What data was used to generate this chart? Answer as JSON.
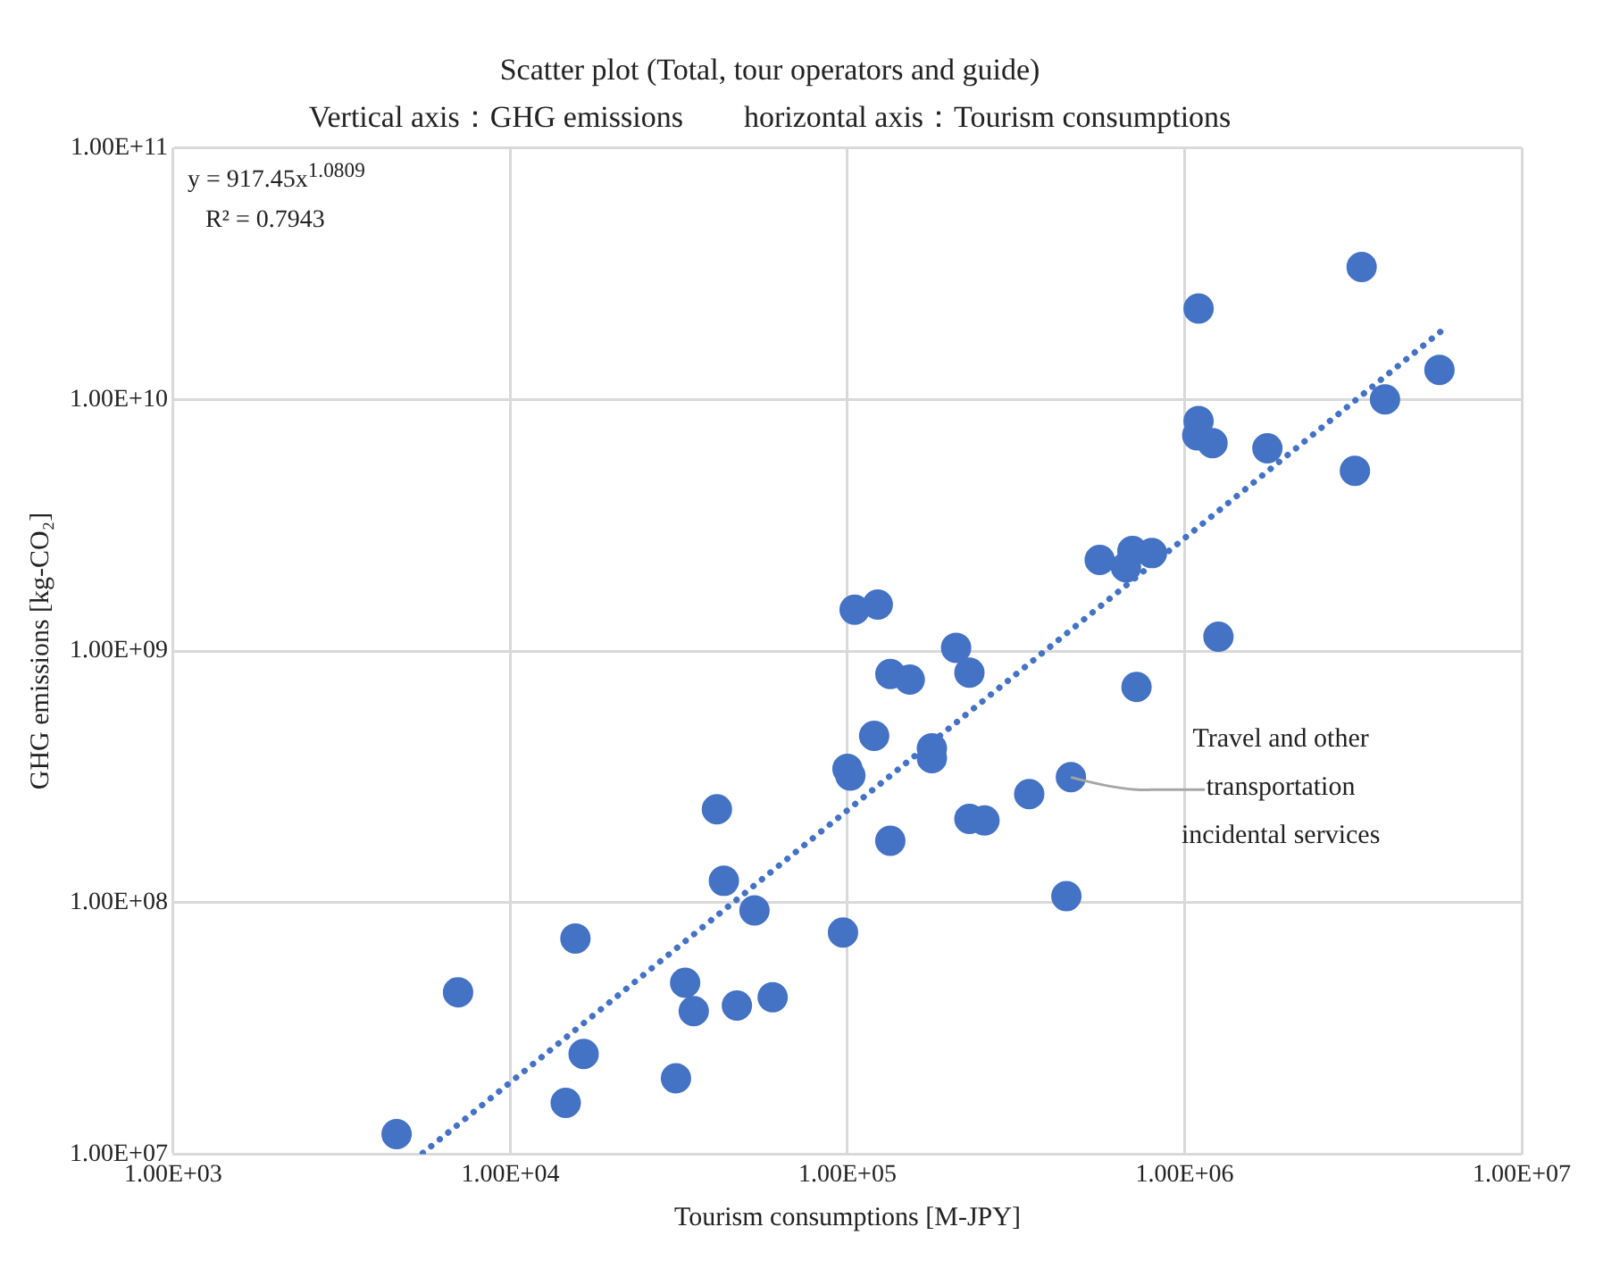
{
  "chart_data": {
    "type": "scatter",
    "title": "Scatter plot (Total, tour operators and guide)",
    "subtitle": "Vertical axis：GHG emissions　　horizontal axis：Tourism consumptions",
    "xlabel": "Tourism consumptions [M-JPY]",
    "ylabel": "GHG emissions [kg-CO₂]",
    "log": "xy",
    "grid": true,
    "legend": false,
    "marker": "circle",
    "xlim": [
      1000,
      10000000
    ],
    "xticks": [
      {
        "value": 1000,
        "label": "1.00E+03"
      },
      {
        "value": 10000,
        "label": "1.00E+04"
      },
      {
        "value": 100000,
        "label": "1.00E+05"
      },
      {
        "value": 1000000,
        "label": "1.00E+06"
      },
      {
        "value": 10000000,
        "label": "1.00E+07"
      }
    ],
    "ylim": [
      10000000,
      100000000000
    ],
    "yticks": [
      {
        "value": 10000000,
        "label": "1.00E+07"
      },
      {
        "value": 100000000,
        "label": "1.00E+08"
      },
      {
        "value": 1000000000,
        "label": "1.00E+09"
      },
      {
        "value": 10000000000,
        "label": "1.00E+10"
      },
      {
        "value": 100000000000,
        "label": "1.00E+11"
      }
    ],
    "series": [
      {
        "color": "#4472c4",
        "x": [
          4600,
          7000,
          14600,
          15600,
          16500,
          31000,
          33000,
          35000,
          41000,
          43000,
          47000,
          53000,
          60000,
          97000,
          100000,
          102000,
          105000,
          120000,
          123000,
          134000,
          134000,
          153000,
          178000,
          178000,
          210000,
          230000,
          230000,
          255000,
          346000,
          446000,
          460000,
          560000,
          670000,
          700000,
          720000,
          800000,
          1100000,
          1100000,
          1090000,
          1210000,
          1260000,
          1760000,
          3200000,
          3350000,
          3930000,
          5700000
        ],
        "values": [
          12000000,
          44000000,
          16000000,
          72000000,
          25000000,
          20000000,
          48000000,
          37000000,
          235000000,
          122000000,
          39000000,
          93000000,
          42000000,
          76000000,
          340000000,
          320000000,
          1460000000,
          460000000,
          1530000000,
          810000000,
          176000000,
          770000000,
          410000000,
          375000000,
          1030000000,
          820000000,
          215000000,
          212000000,
          270000000,
          106000000,
          315000000,
          2300000000,
          2150000000,
          2500000000,
          720000000,
          2450000000,
          23000000000,
          8200000000,
          7200000000,
          6700000000,
          1140000000,
          6400000000,
          5200000000,
          33600000000,
          10000000000,
          13100000000
        ]
      },
      {
        "type": "line",
        "color": "#4472c4",
        "line_style": "dotted",
        "marker": "none",
        "x": [
          5500,
          5800000
        ],
        "values": [
          10100000,
          18800000000
        ]
      }
    ],
    "annotations": [
      "y = 917.45x$^{1.0809}$",
      "R² = 0.7943",
      {
        "text": "Travel and other transportation incidental services",
        "x": 460000,
        "y": 315000000
      }
    ]
  }
}
